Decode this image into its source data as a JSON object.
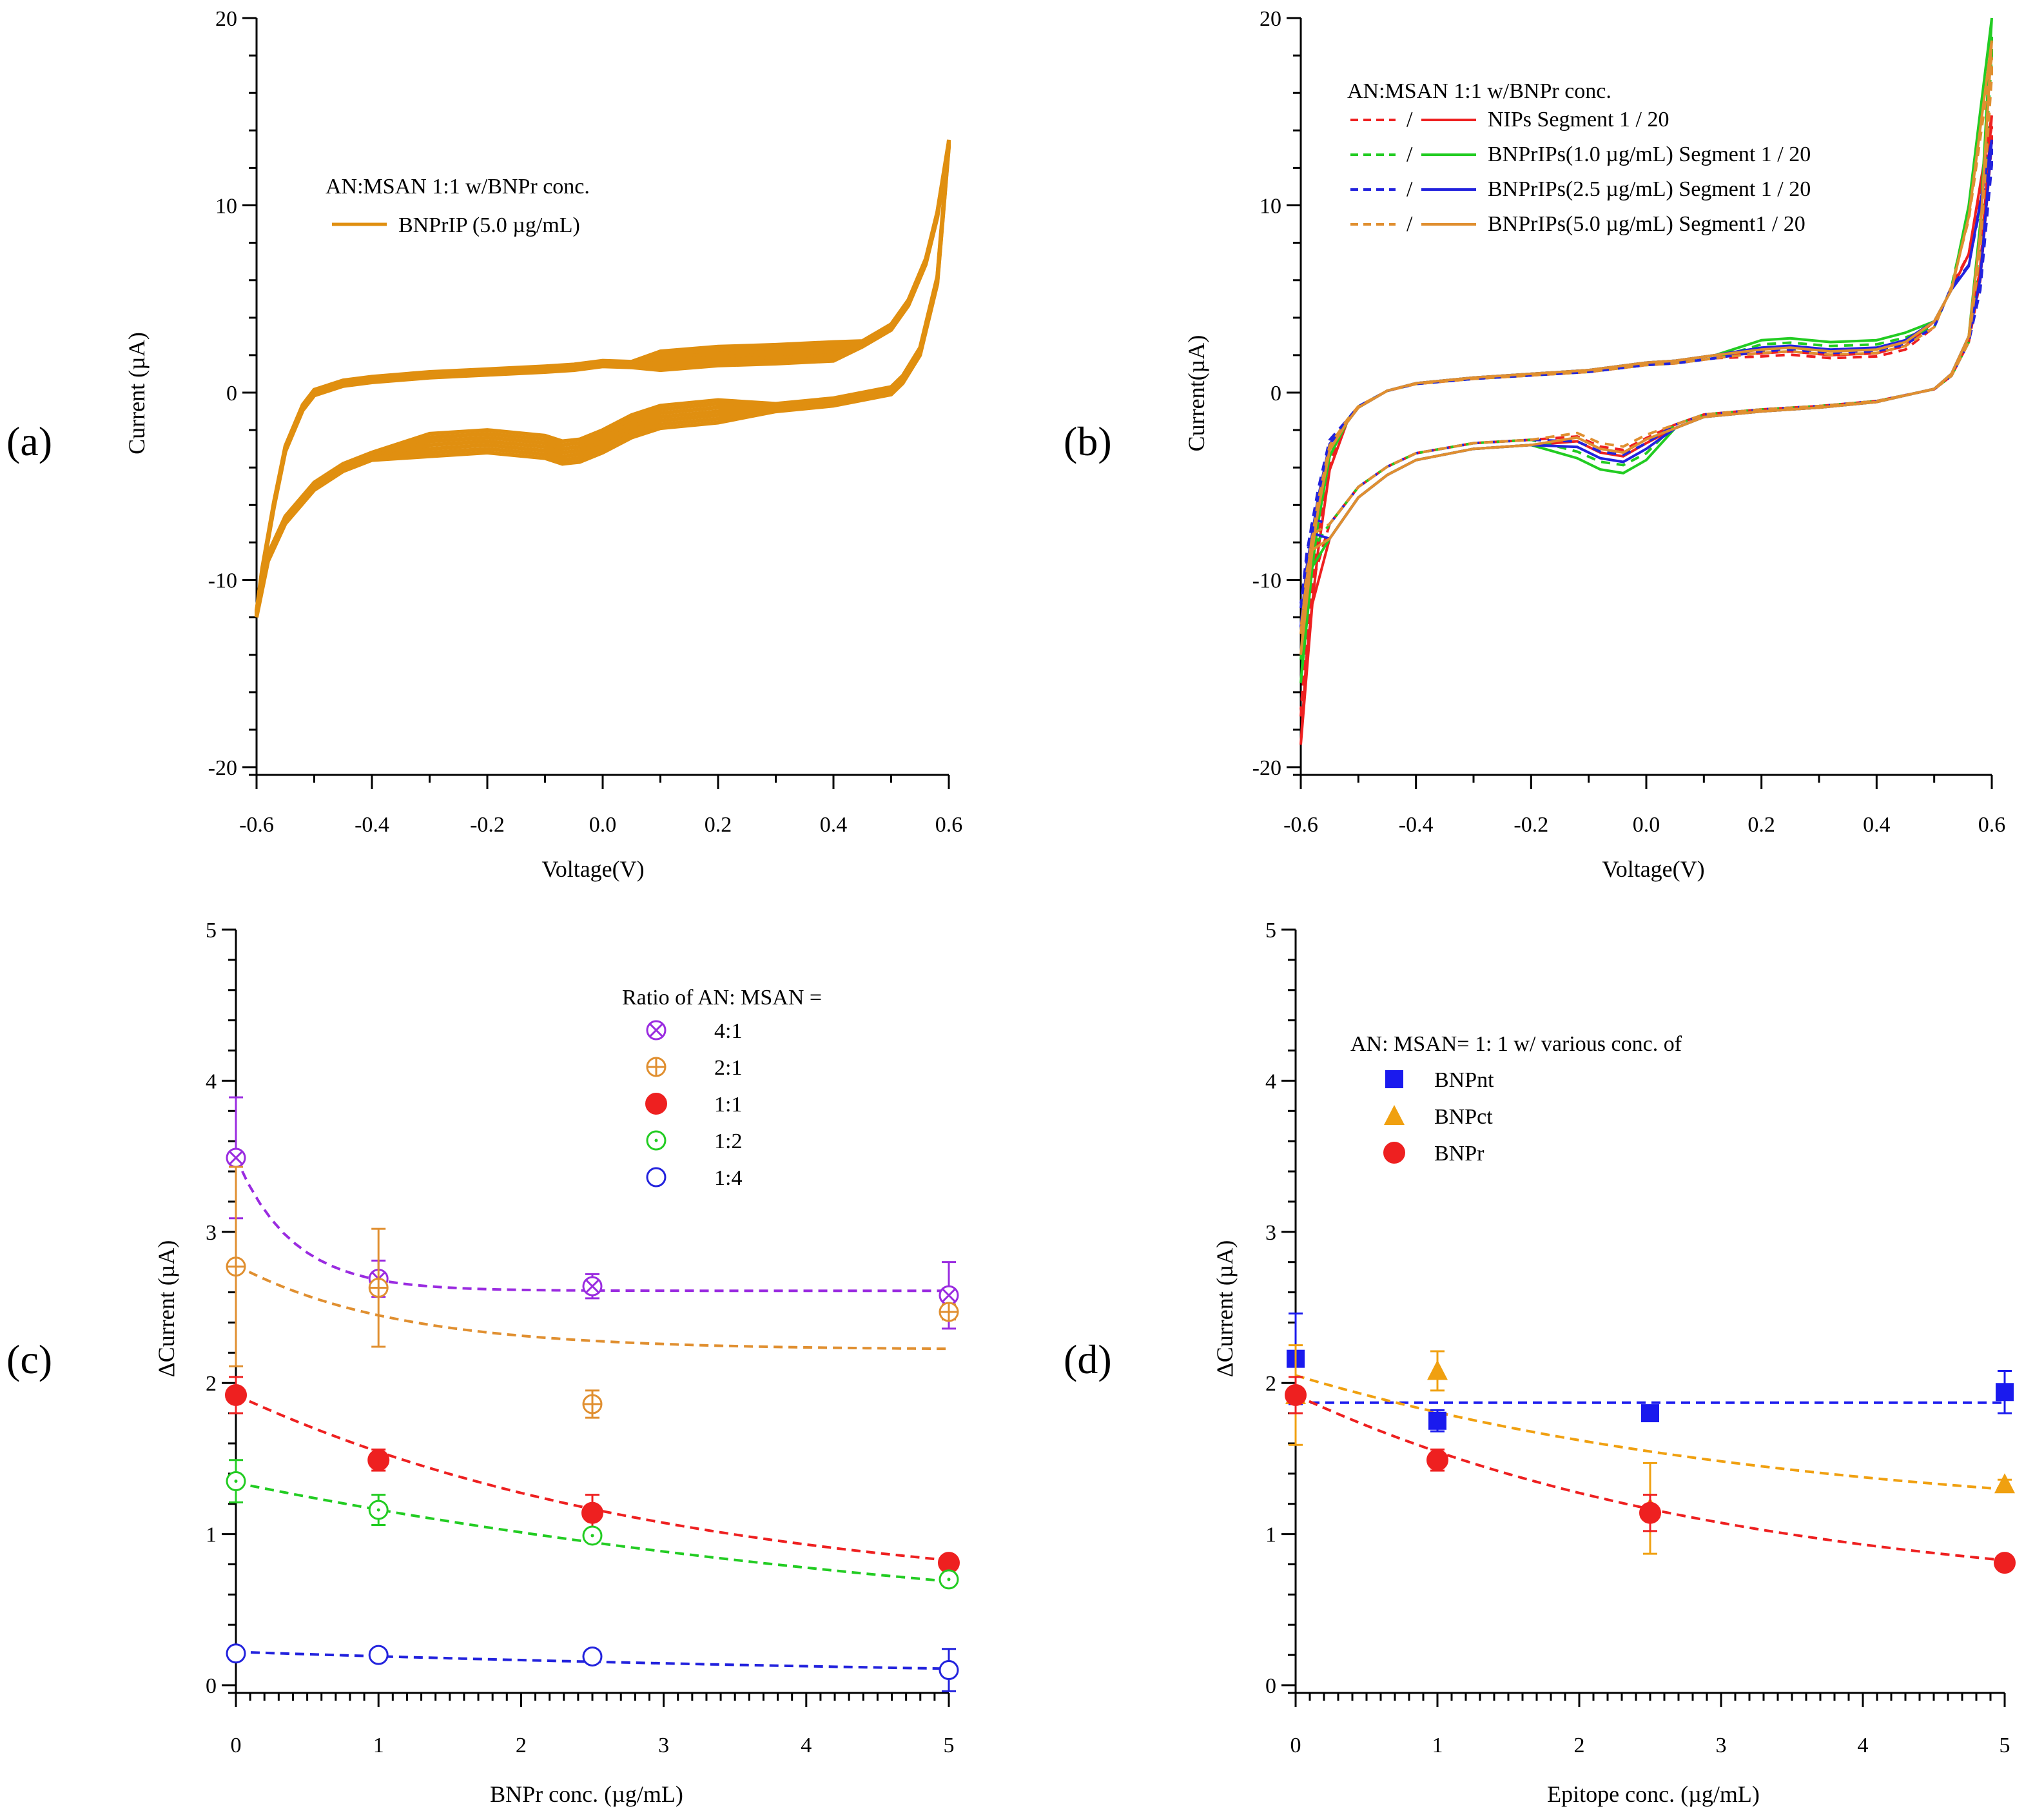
{
  "chart_data": [
    {
      "id": "a",
      "type": "line",
      "panel_label": "(a)",
      "xlabel": "Voltage(V)",
      "ylabel": "Current (µA)",
      "xlim": [
        -0.6,
        0.6
      ],
      "ylim": [
        -20,
        20
      ],
      "xticks": [
        "-0.6",
        "-0.4",
        "-0.2",
        "0.0",
        "0.2",
        "0.4",
        "0.6"
      ],
      "yticks": [
        "-20",
        "-10",
        "0",
        "10",
        "20"
      ],
      "legend_title": "AN:MSAN 1:1 w/BNPr conc.",
      "series": [
        {
          "name": "BNPrIP (5.0 µg/mL)",
          "color": "#e08f10",
          "anodic": [
            [
              -0.6,
              -11.8
            ],
            [
              -0.59,
              -9.5
            ],
            [
              -0.57,
              -6.0
            ],
            [
              -0.55,
              -3.0
            ],
            [
              -0.52,
              -0.8
            ],
            [
              -0.5,
              0.0
            ],
            [
              -0.45,
              0.5
            ],
            [
              -0.4,
              0.7
            ],
            [
              -0.3,
              0.95
            ],
            [
              -0.2,
              1.1
            ],
            [
              -0.1,
              1.25
            ],
            [
              -0.05,
              1.35
            ],
            [
              0.0,
              1.55
            ],
            [
              0.05,
              1.5
            ],
            [
              0.1,
              1.7
            ],
            [
              0.2,
              1.95
            ],
            [
              0.3,
              2.05
            ],
            [
              0.4,
              2.2
            ],
            [
              0.45,
              2.6
            ],
            [
              0.5,
              3.5
            ],
            [
              0.53,
              4.8
            ],
            [
              0.56,
              7.0
            ],
            [
              0.58,
              9.5
            ],
            [
              0.6,
              13.3
            ]
          ],
          "cathodic": [
            [
              0.6,
              13.3
            ],
            [
              0.58,
              6.0
            ],
            [
              0.55,
              2.2
            ],
            [
              0.52,
              0.7
            ],
            [
              0.5,
              0.1
            ],
            [
              0.4,
              -0.5
            ],
            [
              0.3,
              -0.8
            ],
            [
              0.2,
              -1.0
            ],
            [
              0.1,
              -1.3
            ],
            [
              0.05,
              -1.8
            ],
            [
              0.0,
              -2.6
            ],
            [
              -0.04,
              -3.1
            ],
            [
              -0.07,
              -3.2
            ],
            [
              -0.1,
              -2.9
            ],
            [
              -0.2,
              -2.6
            ],
            [
              -0.3,
              -2.8
            ],
            [
              -0.4,
              -3.4
            ],
            [
              -0.45,
              -4.0
            ],
            [
              -0.5,
              -5.0
            ],
            [
              -0.55,
              -6.8
            ],
            [
              -0.58,
              -8.8
            ],
            [
              -0.6,
              -11.8
            ]
          ],
          "band_width": 0.5
        }
      ]
    },
    {
      "id": "b",
      "type": "line",
      "panel_label": "(b)",
      "xlabel": "Voltage(V)",
      "ylabel": "Current(µA)",
      "xlim": [
        -0.6,
        0.6
      ],
      "ylim": [
        -20,
        20
      ],
      "xticks": [
        "-0.6",
        "-0.4",
        "-0.2",
        "0.0",
        "0.2",
        "0.4",
        "0.6"
      ],
      "yticks": [
        "-20",
        "-10",
        "0",
        "10",
        "20"
      ],
      "legend_title": "AN:MSAN 1:1 w/BNPr conc.",
      "legend_sep": "/",
      "series": [
        {
          "name": "NIPs Segment 1 / 20",
          "color": "#ee2020",
          "end_up": 14.8,
          "end_dn": -18.8,
          "peak": 2.2,
          "valley": -3.4
        },
        {
          "name": "BNPrIPs(1.0 µg/mL) Segment 1 / 20",
          "color": "#22cc22",
          "end_up": 20.0,
          "end_dn": -15.5,
          "peak": 2.9,
          "valley": -4.3
        },
        {
          "name": "BNPrIPs(2.5 µg/mL) Segment 1 / 20",
          "color": "#2222dd",
          "end_up": 13.5,
          "end_dn": -12.5,
          "peak": 2.5,
          "valley": -3.7
        },
        {
          "name": "BNPrIPs(5.0 µg/mL) Segment1 / 20",
          "color": "#e08f30",
          "end_up": 18.8,
          "end_dn": -14.0,
          "peak": 2.4,
          "valley": -3.2
        }
      ]
    },
    {
      "id": "c",
      "type": "scatter",
      "panel_label": "(c)",
      "xlabel": "BNPr conc. (µg/mL)",
      "ylabel": "ΔCurrent (µA)",
      "xlim": [
        0,
        5
      ],
      "ylim": [
        0,
        5
      ],
      "xticks": [
        "0",
        "1",
        "2",
        "3",
        "4",
        "5"
      ],
      "yticks": [
        "0",
        "1",
        "2",
        "3",
        "4",
        "5"
      ],
      "legend_title": "Ratio of AN: MSAN =",
      "series": [
        {
          "name": "4:1",
          "color": "#9a2be0",
          "marker": "circle-x",
          "x": [
            0,
            1,
            2.5,
            5
          ],
          "y": [
            3.49,
            2.69,
            2.64,
            2.58
          ],
          "err": [
            0.4,
            0.12,
            0.08,
            0.22
          ],
          "fit": {
            "a": 2.61,
            "b": 0.88,
            "k": 2.5
          }
        },
        {
          "name": "2:1",
          "color": "#e08f30",
          "marker": "circle-plus",
          "x": [
            0,
            1,
            2.5,
            5
          ],
          "y": [
            2.77,
            2.63,
            1.86,
            2.47
          ],
          "err": [
            0.66,
            0.39,
            0.09,
            0.05
          ],
          "fit": {
            "a": 2.22,
            "b": 0.56,
            "k": 0.9
          }
        },
        {
          "name": "1:1",
          "color": "#ee2020",
          "marker": "filled-circle",
          "x": [
            0,
            1,
            2.5,
            5
          ],
          "y": [
            1.92,
            1.49,
            1.14,
            0.81
          ],
          "err": [
            0.12,
            0.07,
            0.12,
            0.04
          ],
          "fit": {
            "a": 0.55,
            "b": 1.37,
            "k": 0.32
          }
        },
        {
          "name": "1:2",
          "color": "#22cc22",
          "marker": "circle-dot",
          "x": [
            0,
            1,
            2.5,
            5
          ],
          "y": [
            1.35,
            1.16,
            0.99,
            0.7
          ],
          "err": [
            0.14,
            0.1,
            0.03,
            0.03
          ],
          "fit": {
            "a": 0.2,
            "b": 1.14,
            "k": 0.17
          }
        },
        {
          "name": "1:4",
          "color": "#2222dd",
          "marker": "open-circle",
          "x": [
            0,
            1,
            2.5,
            5
          ],
          "y": [
            0.21,
            0.2,
            0.19,
            0.1
          ],
          "err": [
            0.04,
            0.02,
            0.02,
            0.14
          ],
          "fit": {
            "a": 0.0,
            "b": 0.22,
            "k": 0.14
          }
        }
      ]
    },
    {
      "id": "d",
      "type": "scatter",
      "panel_label": "(d)",
      "xlabel": "Epitope conc. (µg/mL)",
      "ylabel": "ΔCurrent (µA)",
      "xlim": [
        0,
        5
      ],
      "ylim": [
        0,
        5
      ],
      "xticks": [
        "0",
        "1",
        "2",
        "3",
        "4",
        "5"
      ],
      "yticks": [
        "0",
        "1",
        "2",
        "3",
        "4",
        "5"
      ],
      "legend_title": "AN: MSAN= 1: 1 w/ various conc. of",
      "series": [
        {
          "name": "BNPnt",
          "color": "#1a1aee",
          "marker": "filled-square",
          "x": [
            0,
            1,
            2.5,
            5
          ],
          "y": [
            2.16,
            1.75,
            1.8,
            1.94
          ],
          "err": [
            0.3,
            0.07,
            0.05,
            0.14
          ],
          "fit": {
            "a": 1.87,
            "b": 0.0,
            "k": 0.0
          }
        },
        {
          "name": "BNPct",
          "color": "#f0a010",
          "marker": "filled-triangle",
          "x": [
            0,
            1,
            2.5,
            5
          ],
          "y": [
            1.92,
            2.08,
            1.17,
            1.33
          ],
          "err": [
            0.33,
            0.13,
            0.3,
            0.03
          ],
          "fit": {
            "a": 1.05,
            "b": 1.0,
            "k": 0.28
          }
        },
        {
          "name": "BNPr",
          "color": "#ee2020",
          "marker": "filled-circle",
          "x": [
            0,
            1,
            2.5,
            5
          ],
          "y": [
            1.92,
            1.49,
            1.14,
            0.81
          ],
          "err": [
            0.12,
            0.07,
            0.12,
            0.04
          ],
          "fit": {
            "a": 0.55,
            "b": 1.37,
            "k": 0.32
          }
        }
      ]
    }
  ]
}
